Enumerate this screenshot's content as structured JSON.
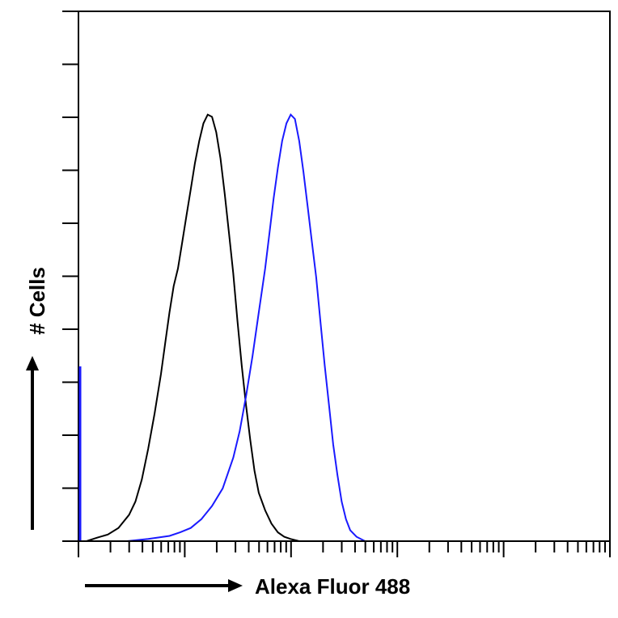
{
  "chart_data": {
    "type": "line",
    "xlabel": "Alexa Fluor 488",
    "ylabel": "# Cells",
    "xscale": "log",
    "x_decades": 5,
    "y_minor_ticks": 10,
    "grid": false,
    "axis_color": "#000000",
    "series": [
      {
        "color": "#000000",
        "points": [
          [
            0.0,
            0.0
          ],
          [
            0.05,
            0.008
          ],
          [
            0.1,
            0.015
          ],
          [
            0.15,
            0.03
          ],
          [
            0.2,
            0.06
          ],
          [
            0.23,
            0.09
          ],
          [
            0.26,
            0.14
          ],
          [
            0.29,
            0.21
          ],
          [
            0.32,
            0.29
          ],
          [
            0.35,
            0.38
          ],
          [
            0.37,
            0.45
          ],
          [
            0.39,
            0.52
          ],
          [
            0.41,
            0.58
          ],
          [
            0.43,
            0.62
          ],
          [
            0.45,
            0.68
          ],
          [
            0.47,
            0.74
          ],
          [
            0.49,
            0.8
          ],
          [
            0.51,
            0.86
          ],
          [
            0.53,
            0.91
          ],
          [
            0.55,
            0.95
          ],
          [
            0.57,
            0.97
          ],
          [
            0.59,
            0.965
          ],
          [
            0.61,
            0.93
          ],
          [
            0.63,
            0.87
          ],
          [
            0.65,
            0.79
          ],
          [
            0.67,
            0.7
          ],
          [
            0.69,
            0.61
          ],
          [
            0.71,
            0.5
          ],
          [
            0.73,
            0.4
          ],
          [
            0.75,
            0.31
          ],
          [
            0.77,
            0.23
          ],
          [
            0.79,
            0.16
          ],
          [
            0.81,
            0.11
          ],
          [
            0.84,
            0.07
          ],
          [
            0.87,
            0.04
          ],
          [
            0.9,
            0.02
          ],
          [
            0.93,
            0.01
          ],
          [
            0.96,
            0.005
          ],
          [
            1.0,
            0.0
          ]
        ]
      },
      {
        "color": "#1a1aff",
        "points": [
          [
            0.0,
            0.0
          ],
          [
            0.1,
            0.005
          ],
          [
            0.2,
            0.012
          ],
          [
            0.25,
            0.02
          ],
          [
            0.3,
            0.03
          ],
          [
            0.35,
            0.05
          ],
          [
            0.4,
            0.08
          ],
          [
            0.45,
            0.12
          ],
          [
            0.5,
            0.19
          ],
          [
            0.53,
            0.25
          ],
          [
            0.56,
            0.33
          ],
          [
            0.59,
            0.42
          ],
          [
            0.62,
            0.52
          ],
          [
            0.65,
            0.62
          ],
          [
            0.67,
            0.7
          ],
          [
            0.69,
            0.78
          ],
          [
            0.71,
            0.85
          ],
          [
            0.73,
            0.91
          ],
          [
            0.75,
            0.95
          ],
          [
            0.77,
            0.97
          ],
          [
            0.79,
            0.96
          ],
          [
            0.81,
            0.91
          ],
          [
            0.83,
            0.84
          ],
          [
            0.85,
            0.76
          ],
          [
            0.87,
            0.68
          ],
          [
            0.89,
            0.6
          ],
          [
            0.91,
            0.5
          ],
          [
            0.93,
            0.4
          ],
          [
            0.95,
            0.31
          ],
          [
            0.97,
            0.22
          ],
          [
            0.99,
            0.15
          ],
          [
            1.01,
            0.09
          ],
          [
            1.03,
            0.05
          ],
          [
            1.05,
            0.025
          ],
          [
            1.08,
            0.01
          ],
          [
            1.12,
            0.0
          ]
        ]
      }
    ]
  }
}
